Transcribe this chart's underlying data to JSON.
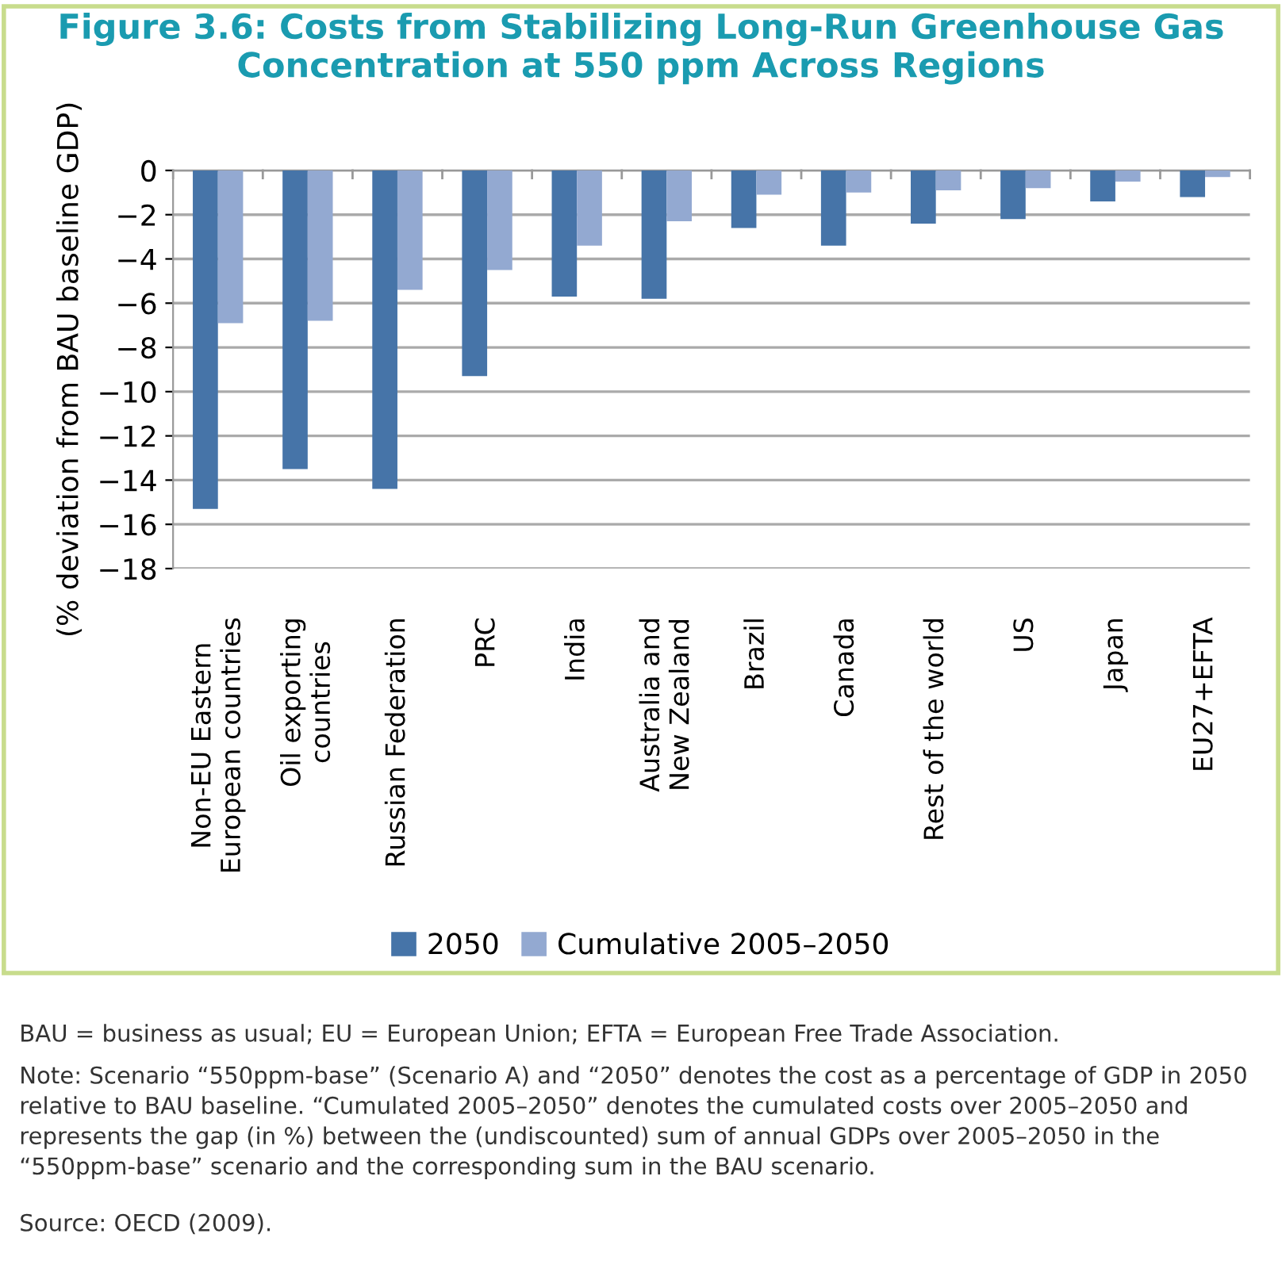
{
  "chart_data": {
    "type": "bar",
    "title": "Figure 3.6: Costs from Stabilizing Long-Run Greenhouse Gas Concentration at 550 ppm Across Regions",
    "ylabel": "(% deviation from BAU baseline GDP)",
    "categories": [
      "Non-EU Eastern\nEuropean countries",
      "Oil exporting\ncountries",
      "Russian Federation",
      "PRC",
      "India",
      "Australia and\nNew Zealand",
      "Brazil",
      "Canada",
      "Rest of the world",
      "US",
      "Japan",
      "EU27+EFTA"
    ],
    "series": [
      {
        "name": "2050",
        "color": "#4674a8",
        "values": [
          -15.3,
          -13.5,
          -14.4,
          -9.3,
          -5.7,
          -5.8,
          -2.6,
          -3.4,
          -2.4,
          -2.2,
          -1.4,
          -1.2
        ]
      },
      {
        "name": "Cumulative 2005–2050",
        "color": "#93a9d1",
        "values": [
          -6.9,
          -6.8,
          -5.4,
          -4.5,
          -3.4,
          -2.3,
          -1.1,
          -1.0,
          -0.9,
          -0.8,
          -0.5,
          -0.3
        ]
      }
    ],
    "ylim": [
      -18,
      0
    ],
    "yticks": [
      -18,
      -16,
      -14,
      -12,
      -10,
      -8,
      -6,
      -4,
      -2,
      0
    ],
    "grid": "y",
    "legend": "bottom",
    "annotations": [
      "BAU = business as usual; EU = European Union; EFTA = European Free Trade Association.",
      "Note: Scenario “550ppm-base” (Scenario A) and “2050” denotes the cost as a percentage of GDP in 2050 relative to BAU baseline. “Cumulated 2005–2050” denotes the cumulated costs over 2005–2050 and represents the gap (in %) between the (undiscounted) sum of annual GDPs over 2005–2050 in the “550ppm-base” scenario and the corresponding sum in the BAU scenario.",
      "Source: OECD (2009)."
    ]
  }
}
